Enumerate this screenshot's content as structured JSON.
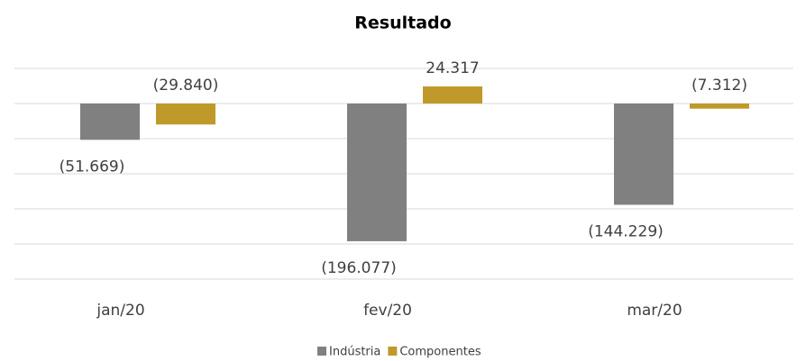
{
  "chart_data": {
    "type": "bar",
    "title": "Resultado",
    "categories": [
      "jan/20",
      "fev/20",
      "mar/20"
    ],
    "series": [
      {
        "name": "Indústria",
        "color": "#808080",
        "values": [
          -51669,
          -196077,
          -144229
        ],
        "value_labels": [
          "(51.669)",
          "(196.077)",
          "(144.229)"
        ]
      },
      {
        "name": "Componentes",
        "color": "#bf9a2a",
        "values": [
          -29840,
          24317,
          -7312
        ],
        "value_labels": [
          "(29.840)",
          "24.317",
          "(7.312)"
        ]
      }
    ],
    "ylim": [
      -250000,
      50000
    ],
    "yticks": [
      -250000,
      -200000,
      -150000,
      -100000,
      -50000,
      0,
      50000
    ],
    "grid": true
  }
}
